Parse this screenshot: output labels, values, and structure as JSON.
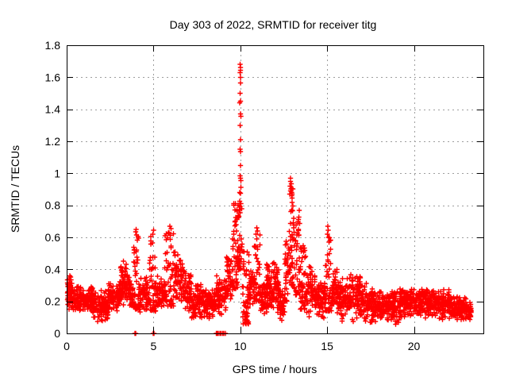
{
  "chart_data": {
    "type": "scatter",
    "title": "Day 303 of 2022, SRMTID for receiver titg",
    "xlabel": "GPS time / hours",
    "ylabel": "SRMTID / TECUs",
    "xlim": [
      0,
      24
    ],
    "ylim": [
      0,
      1.8
    ],
    "xticks": {
      "values": [
        0,
        5,
        10,
        15,
        20
      ],
      "labels": [
        "0",
        "5",
        "10",
        "15",
        "20"
      ]
    },
    "yticks": {
      "values": [
        0,
        0.2,
        0.4,
        0.6,
        0.8,
        1.0,
        1.2,
        1.4,
        1.6,
        1.8
      ],
      "labels": [
        "0",
        "0.2",
        "0.4",
        "0.6",
        "0.8",
        "1",
        "1.2",
        "1.4",
        "1.6",
        "1.8"
      ]
    },
    "grid": {
      "show": true,
      "style": "dashed",
      "color": "#9e9e9e"
    },
    "border": {
      "color": "#000000",
      "mirrored_ticks": true
    },
    "marker": {
      "shape": "plus",
      "color": "#ff0000",
      "size": 7
    },
    "legend": {
      "show": false
    },
    "series": [
      {
        "name": "SRMTID",
        "note": "dense 30s-cadence scatter; envelope_segments = [t_start_h, t_end_h, min_TECU, max_TECU, n_points]",
        "envelope_segments": [
          [
            0.0,
            0.3,
            0.14,
            0.37,
            45
          ],
          [
            0.3,
            0.8,
            0.13,
            0.31,
            70
          ],
          [
            0.8,
            1.5,
            0.12,
            0.3,
            95
          ],
          [
            1.5,
            2.4,
            0.06,
            0.28,
            120
          ],
          [
            2.4,
            3.1,
            0.14,
            0.33,
            95
          ],
          [
            3.1,
            3.6,
            0.17,
            0.46,
            65
          ],
          [
            3.6,
            3.85,
            0.14,
            0.34,
            32
          ],
          [
            3.85,
            4.15,
            0.15,
            0.62,
            42
          ],
          [
            4.15,
            4.75,
            0.12,
            0.36,
            75
          ],
          [
            4.75,
            5.2,
            0.14,
            0.62,
            52
          ],
          [
            5.2,
            5.65,
            0.12,
            0.38,
            55
          ],
          [
            5.65,
            6.2,
            0.17,
            0.64,
            62
          ],
          [
            6.2,
            6.7,
            0.17,
            0.54,
            55
          ],
          [
            6.7,
            7.2,
            0.12,
            0.43,
            58
          ],
          [
            7.2,
            7.9,
            0.07,
            0.31,
            85
          ],
          [
            7.9,
            8.6,
            0.07,
            0.28,
            85
          ],
          [
            8.6,
            9.2,
            0.11,
            0.38,
            72
          ],
          [
            9.2,
            9.55,
            0.2,
            0.5,
            42
          ],
          [
            9.55,
            9.85,
            0.28,
            0.86,
            48
          ],
          [
            9.85,
            10.1,
            0.4,
            0.95,
            40
          ],
          [
            10.1,
            10.5,
            0.06,
            0.52,
            55
          ],
          [
            10.5,
            10.8,
            0.14,
            0.45,
            40
          ],
          [
            10.8,
            11.15,
            0.2,
            0.62,
            45
          ],
          [
            11.15,
            11.5,
            0.1,
            0.35,
            48
          ],
          [
            11.5,
            12.25,
            0.12,
            0.46,
            115
          ],
          [
            12.25,
            12.55,
            0.06,
            0.3,
            42
          ],
          [
            12.55,
            12.8,
            0.2,
            0.6,
            30
          ],
          [
            12.8,
            13.1,
            0.3,
            0.93,
            48
          ],
          [
            13.1,
            13.45,
            0.24,
            0.8,
            48
          ],
          [
            13.45,
            13.8,
            0.15,
            0.56,
            45
          ],
          [
            13.8,
            14.3,
            0.1,
            0.45,
            60
          ],
          [
            14.3,
            14.9,
            0.08,
            0.36,
            72
          ],
          [
            14.9,
            15.25,
            0.14,
            0.62,
            40
          ],
          [
            15.25,
            15.7,
            0.1,
            0.42,
            55
          ],
          [
            15.7,
            16.3,
            0.06,
            0.36,
            75
          ],
          [
            16.3,
            17.0,
            0.07,
            0.38,
            88
          ],
          [
            17.0,
            17.6,
            0.06,
            0.33,
            75
          ],
          [
            17.6,
            18.3,
            0.06,
            0.28,
            88
          ],
          [
            18.3,
            19.2,
            0.05,
            0.27,
            115
          ],
          [
            19.2,
            20.2,
            0.1,
            0.3,
            130
          ],
          [
            20.2,
            21.2,
            0.09,
            0.3,
            130
          ],
          [
            21.2,
            22.2,
            0.08,
            0.28,
            125
          ],
          [
            22.2,
            23.0,
            0.07,
            0.24,
            105
          ],
          [
            23.0,
            23.3,
            0.08,
            0.2,
            38
          ]
        ],
        "peak_points": [
          [
            9.98,
            1.68
          ],
          [
            10.0,
            1.66
          ],
          [
            10.02,
            1.645
          ],
          [
            9.99,
            1.63
          ],
          [
            10.01,
            1.6
          ],
          [
            10.0,
            1.565
          ],
          [
            9.99,
            1.5
          ],
          [
            10.02,
            1.45
          ],
          [
            9.97,
            1.44
          ],
          [
            10.0,
            1.37
          ],
          [
            10.03,
            1.355
          ],
          [
            9.98,
            1.3
          ],
          [
            10.0,
            1.21
          ],
          [
            9.99,
            1.15
          ],
          [
            10.02,
            1.135
          ],
          [
            10.0,
            1.05
          ],
          [
            9.98,
            0.985
          ],
          [
            10.01,
            0.97
          ],
          [
            10.03,
            0.955
          ],
          [
            9.97,
            0.88
          ],
          [
            10.0,
            0.875
          ],
          [
            12.88,
            0.97
          ],
          [
            12.9,
            0.95
          ],
          [
            12.93,
            0.935
          ],
          [
            12.86,
            0.92
          ],
          [
            12.95,
            0.905
          ],
          [
            12.9,
            0.89
          ],
          [
            12.97,
            0.88
          ],
          [
            12.84,
            0.87
          ],
          [
            15.04,
            0.67
          ],
          [
            15.06,
            0.645
          ],
          [
            15.02,
            0.62
          ],
          [
            15.08,
            0.6
          ],
          [
            10.95,
            0.66
          ],
          [
            11.0,
            0.64
          ],
          [
            10.9,
            0.62
          ],
          [
            5.95,
            0.67
          ],
          [
            6.0,
            0.655
          ],
          [
            5.9,
            0.63
          ],
          [
            4.0,
            0.65
          ],
          [
            3.97,
            0.635
          ],
          [
            4.03,
            0.615
          ],
          [
            5.0,
            0.645
          ],
          [
            4.97,
            0.62
          ]
        ],
        "zero_points": [
          [
            3.93,
            0
          ],
          [
            3.97,
            0
          ],
          [
            4.98,
            0
          ],
          [
            5.03,
            0
          ],
          [
            8.62,
            0
          ],
          [
            8.66,
            0
          ],
          [
            8.68,
            0
          ],
          [
            8.7,
            0
          ],
          [
            8.74,
            0
          ],
          [
            8.82,
            0
          ],
          [
            8.88,
            0
          ],
          [
            8.98,
            0
          ],
          [
            9.06,
            0
          ],
          [
            9.14,
            0
          ]
        ]
      }
    ]
  }
}
